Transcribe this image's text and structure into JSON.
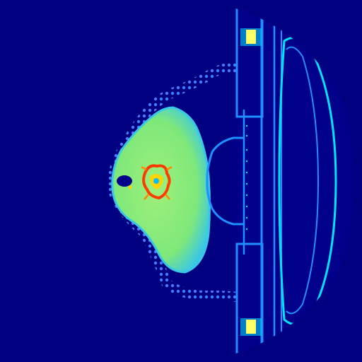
{
  "image": {
    "kind": "false-color CT axial slice",
    "colormap": [
      "#000080",
      "#0000ff",
      "#00bfff",
      "#7fff7f",
      "#ffff00",
      "#ff0000"
    ],
    "colors": {
      "background": "#000080",
      "tissue": "#7fe87a",
      "tissue_edge": "#39c7e6",
      "bone": "#ff3b00",
      "bone_core": "#ffd400",
      "hardware": "#1e90ff",
      "hardware_bright": "#00e5ff",
      "foam": "#4b7bff"
    }
  }
}
